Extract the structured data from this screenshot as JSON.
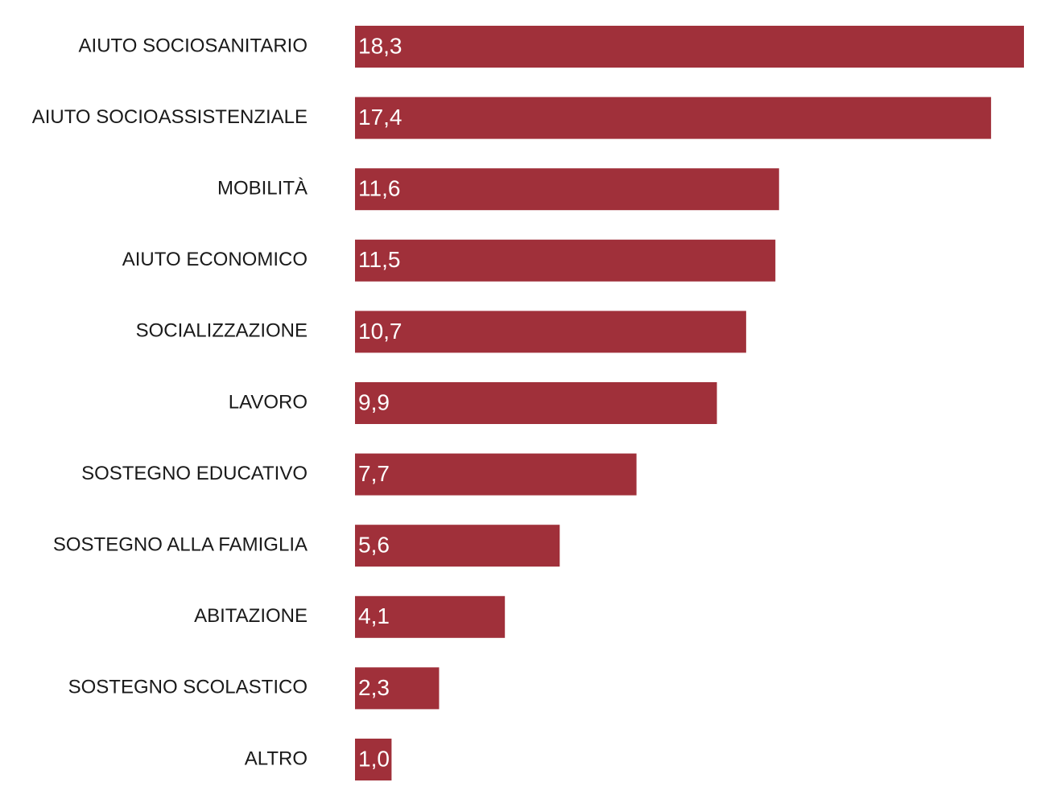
{
  "chart_data": {
    "type": "bar",
    "orientation": "horizontal",
    "title": "",
    "xlabel": "",
    "ylabel": "",
    "grid": false,
    "legend": "none",
    "bar_color": "#a0303a",
    "label_color": "#1a1a1a",
    "value_label_color": "#ffffff",
    "xlim": [
      0,
      18.3
    ],
    "categories": [
      "AIUTO SOCIOSANITARIO",
      "AIUTO SOCIOASSISTENZIALE",
      "MOBILITÀ",
      "AIUTO ECONOMICO",
      "SOCIALIZZAZIONE",
      "LAVORO",
      "SOSTEGNO EDUCATIVO",
      "SOSTEGNO ALLA FAMIGLIA",
      "ABITAZIONE",
      "SOSTEGNO SCOLASTICO",
      "ALTRO"
    ],
    "values": [
      18.3,
      17.4,
      11.6,
      11.5,
      10.7,
      9.9,
      7.7,
      5.6,
      4.1,
      2.3,
      1.0
    ],
    "value_labels": [
      "18,3",
      "17,4",
      "11,6",
      "11,5",
      "10,7",
      "9,9",
      "7,7",
      "5,6",
      "4,1",
      "2,3",
      "1,0"
    ]
  }
}
